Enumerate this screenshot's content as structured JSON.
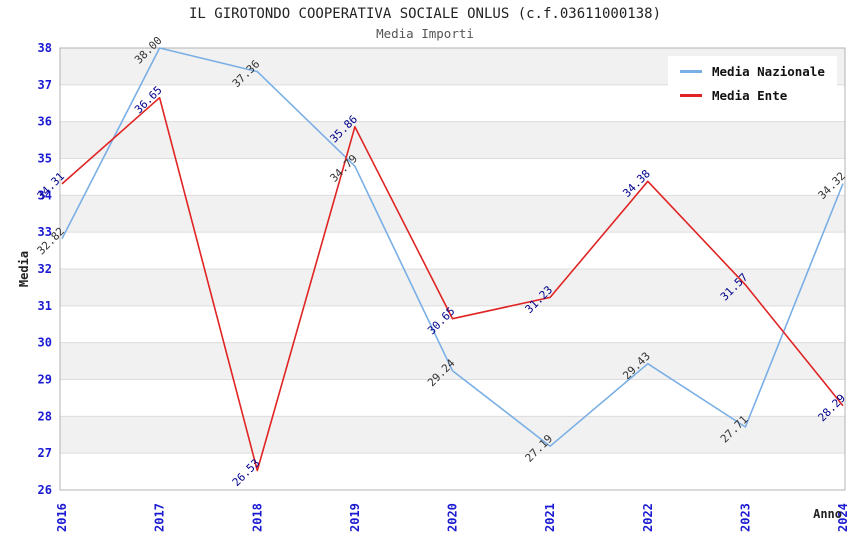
{
  "chart_data": {
    "type": "line",
    "title": "IL GIROTONDO COOPERATIVA SOCIALE ONLUS (c.f.03611000138)",
    "subtitle": "Media Importi",
    "categories": [
      "2016",
      "2017",
      "2018",
      "2019",
      "2020",
      "2021",
      "2022",
      "2023",
      "2024"
    ],
    "series": [
      {
        "name": "Media Nazionale",
        "color": "#7aafe6",
        "label_color": "#333333",
        "values": [
          32.82,
          38.0,
          37.36,
          34.79,
          29.24,
          27.19,
          29.43,
          27.71,
          34.32
        ]
      },
      {
        "name": "Media Ente",
        "color": "#e02424",
        "label_color": "#00008b",
        "values": [
          34.31,
          36.65,
          26.53,
          35.86,
          30.65,
          31.23,
          34.38,
          31.57,
          28.29
        ]
      }
    ],
    "xlabel": "Anno",
    "ylabel": "Media",
    "ylim": [
      26,
      38
    ],
    "ytick_step": 1,
    "yticks": [
      26,
      27,
      28,
      29,
      30,
      31,
      32,
      33,
      34,
      35,
      36,
      37,
      38
    ],
    "grid": "horizontal-bands-alternating",
    "legend_position": "top-right",
    "colors": {
      "tick_label": "#1a1ad2",
      "band_fill": "#f1f1f1",
      "gridline": "#dcdcdc",
      "plot_border": "#b3b3b3"
    }
  }
}
